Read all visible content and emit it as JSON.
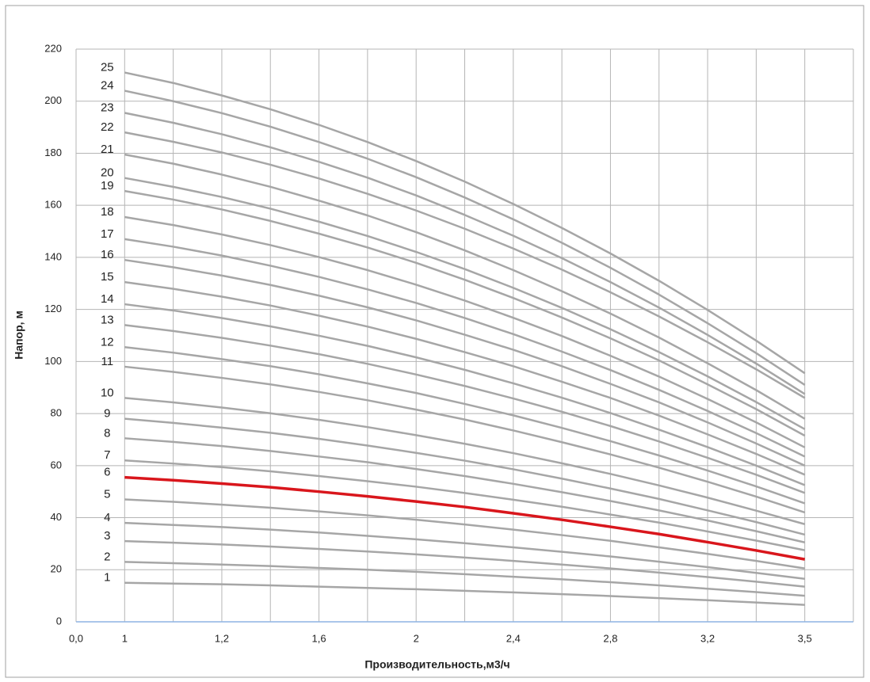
{
  "chart_data": {
    "type": "line",
    "x_label": "Производительность,м3/ч",
    "y_label": "Напор, м",
    "categories": [
      "0,0",
      "1",
      null,
      "1,2",
      null,
      "1,6",
      null,
      "2",
      null,
      "2,4",
      null,
      "2,8",
      null,
      "3,2",
      null,
      "3,5"
    ],
    "ylim": [
      0,
      220
    ],
    "yticks": [
      0,
      20,
      40,
      60,
      80,
      100,
      120,
      140,
      160,
      180,
      200,
      220
    ],
    "grid": true,
    "series": [
      {
        "name": "1",
        "color": "#a6a6a6",
        "values": [
          null,
          15,
          14.7,
          14.4,
          14,
          13.5,
          13,
          12.5,
          11.9,
          11.3,
          10.6,
          9.9,
          9.1,
          8.3,
          7.4,
          6.5
        ]
      },
      {
        "name": "2",
        "color": "#a6a6a6",
        "values": [
          null,
          23,
          22.5,
          22,
          21.4,
          20.7,
          20,
          19.2,
          18.3,
          17.3,
          16.3,
          15.2,
          14,
          12.7,
          11.4,
          10
        ]
      },
      {
        "name": "3",
        "color": "#a6a6a6",
        "values": [
          null,
          31,
          30.4,
          29.7,
          28.9,
          28,
          27,
          25.9,
          24.7,
          23.4,
          22,
          20.5,
          18.9,
          17.2,
          15.4,
          13.5
        ]
      },
      {
        "name": "4",
        "color": "#a6a6a6",
        "values": [
          null,
          38,
          37.2,
          36.4,
          35.4,
          34.3,
          33,
          31.7,
          30.2,
          28.6,
          26.9,
          25.1,
          23.1,
          21,
          18.8,
          16.5
        ]
      },
      {
        "name": "5",
        "color": "#a6a6a6",
        "values": [
          null,
          47,
          46.1,
          45,
          43.8,
          42.4,
          40.9,
          39.2,
          37.4,
          35.4,
          33.3,
          31.1,
          28.6,
          26.1,
          23.4,
          20.5
        ]
      },
      {
        "name": "6",
        "color": "#d9161c",
        "values": [
          null,
          55.5,
          54.4,
          53.1,
          51.7,
          50,
          48.2,
          46.2,
          44.1,
          41.7,
          39.2,
          36.5,
          33.7,
          30.6,
          27.4,
          24
        ]
      },
      {
        "name": "7",
        "color": "#a6a6a6",
        "values": [
          null,
          62,
          60.8,
          59.4,
          57.8,
          56,
          54,
          51.9,
          49.5,
          46.9,
          44.2,
          41.2,
          38.1,
          34.7,
          31.2,
          27.5
        ]
      },
      {
        "name": "8",
        "color": "#a6a6a6",
        "values": [
          null,
          70.5,
          69.1,
          67.5,
          65.6,
          63.5,
          61.3,
          58.7,
          56,
          53,
          49.8,
          46.4,
          42.8,
          38.9,
          34.8,
          30.5
        ]
      },
      {
        "name": "9",
        "color": "#a6a6a6",
        "values": [
          null,
          78,
          76.4,
          74.6,
          72.6,
          70.3,
          67.7,
          64.9,
          61.9,
          58.6,
          55,
          51.2,
          47.2,
          42.8,
          38.3,
          33.5
        ]
      },
      {
        "name": "10",
        "color": "#a6a6a6",
        "values": [
          null,
          86,
          84.3,
          82.3,
          80.1,
          77.6,
          74.8,
          71.7,
          68.4,
          64.8,
          60.9,
          56.8,
          52.4,
          47.7,
          42.7,
          37.5
        ]
      },
      {
        "name": "11",
        "color": "#a6a6a6",
        "values": [
          null,
          98,
          96,
          93.7,
          91.2,
          88.3,
          85.1,
          81.5,
          77.7,
          73.5,
          69,
          64.3,
          59.2,
          53.8,
          48.1,
          42
        ]
      },
      {
        "name": "12",
        "color": "#a6a6a6",
        "values": [
          null,
          105.5,
          103.4,
          100.9,
          98.2,
          95.1,
          91.6,
          87.9,
          83.7,
          79.3,
          74.5,
          69.4,
          63.9,
          58.1,
          52,
          45.5
        ]
      },
      {
        "name": "13",
        "color": "#a6a6a6",
        "values": [
          null,
          114,
          111.7,
          109.1,
          106.1,
          102.8,
          99.1,
          95,
          90.6,
          85.8,
          80.7,
          75.2,
          69.3,
          63,
          56.5,
          49.5
        ]
      },
      {
        "name": "14",
        "color": "#a6a6a6",
        "values": [
          null,
          122,
          119.6,
          116.7,
          113.5,
          109.9,
          106,
          101.6,
          96.8,
          91.6,
          86.1,
          80.2,
          73.8,
          67.1,
          60,
          52.5
        ]
      },
      {
        "name": "15",
        "color": "#a6a6a6",
        "values": [
          null,
          130.5,
          127.9,
          124.9,
          121.5,
          117.6,
          113.4,
          108.7,
          103.6,
          98.2,
          92.2,
          86,
          79.2,
          72,
          64.5,
          56.5
        ]
      },
      {
        "name": "16",
        "color": "#a6a6a6",
        "values": [
          null,
          139,
          136.2,
          133,
          129.4,
          125.3,
          120.8,
          115.8,
          110.3,
          104.5,
          98.2,
          91.4,
          84.3,
          76.6,
          68.5,
          60
        ]
      },
      {
        "name": "17",
        "color": "#a6a6a6",
        "values": [
          null,
          147,
          144.1,
          140.7,
          136.8,
          132.5,
          127.7,
          122.5,
          116.7,
          110.5,
          103.8,
          96.7,
          89.1,
          81,
          72.5,
          63.5
        ]
      },
      {
        "name": "18",
        "color": "#a6a6a6",
        "values": [
          null,
          155.5,
          152.4,
          148.8,
          144.7,
          140.1,
          135.1,
          129.5,
          123.4,
          116.8,
          109.8,
          102.2,
          94.2,
          85.6,
          76.6,
          67
        ]
      },
      {
        "name": "19",
        "color": "#a6a6a6",
        "values": [
          null,
          165.5,
          162.2,
          158.4,
          154,
          149.1,
          143.8,
          137.9,
          131.4,
          124.4,
          116.9,
          108.9,
          100.4,
          91.2,
          81.7,
          71.5
        ]
      },
      {
        "name": "20",
        "color": "#a6a6a6",
        "values": [
          null,
          170.5,
          167.1,
          163.2,
          158.7,
          153.7,
          148.2,
          142.1,
          135.5,
          128.3,
          120.6,
          112.4,
          103.6,
          94.3,
          84.4,
          74
        ]
      },
      {
        "name": "21",
        "color": "#a6a6a6",
        "values": [
          null,
          179.5,
          176,
          171.8,
          167.1,
          161.8,
          156.1,
          149.7,
          142.7,
          135.1,
          127,
          118.4,
          109.2,
          99.3,
          89,
          78
        ]
      },
      {
        "name": "22",
        "color": "#a6a6a6",
        "values": [
          null,
          188,
          184.4,
          180.3,
          175.6,
          170.3,
          164.4,
          158,
          151,
          143.4,
          135.3,
          126.6,
          117.3,
          107.4,
          97,
          86
        ]
      },
      {
        "name": "23",
        "color": "#a6a6a6",
        "values": [
          null,
          195.5,
          191.7,
          187.3,
          182.3,
          176.7,
          170.6,
          163.8,
          156.3,
          148.3,
          139.7,
          130.5,
          120.7,
          110.2,
          99.2,
          87.5
        ]
      },
      {
        "name": "24",
        "color": "#a6a6a6",
        "values": [
          null,
          204,
          200,
          195.4,
          190.2,
          184.3,
          177.9,
          170.8,
          163,
          154.6,
          145.6,
          136,
          125.7,
          114.7,
          103.2,
          91
        ]
      },
      {
        "name": "25",
        "color": "#a6a6a6",
        "values": [
          null,
          211,
          207,
          202.2,
          196.9,
          190.9,
          184.3,
          177,
          169.1,
          160.5,
          151.3,
          141.5,
          131,
          119.8,
          108,
          95.5
        ]
      }
    ]
  }
}
